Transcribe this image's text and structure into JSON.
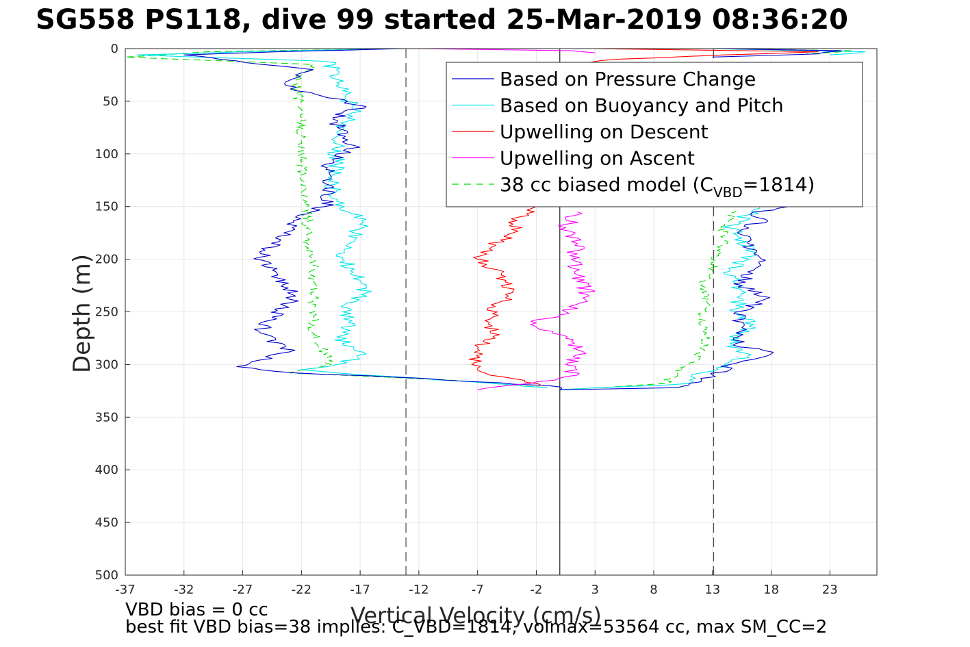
{
  "title": "SG558 PS118, dive 99 started 25-Mar-2019 08:36:20",
  "notes": {
    "line1": "VBD bias = 0 cc",
    "line2": "best fit VBD bias=38 implies: C_VBD=1814, volmax=53564 cc, max SM_CC=2"
  },
  "colors": {
    "pressure": "#0000cc",
    "buoyancy": "#00e5ee",
    "descent": "#ff0000",
    "ascent": "#ff00ff",
    "model": "#00dd00",
    "grid": "#e6e6e6",
    "axis": "#262626"
  },
  "chart_data": {
    "type": "line",
    "title": "SG558 PS118, dive 99 started 25-Mar-2019 08:36:20",
    "xlabel": "Vertical Velocity (cm/s)",
    "ylabel": "Depth (m)",
    "xlim": [
      -37,
      27
    ],
    "ylim": [
      500,
      0
    ],
    "y_reversed": true,
    "grid": true,
    "legend_position": "top-right",
    "x_ticks": [
      -37,
      -32,
      -27,
      -22,
      -17,
      -12,
      -7,
      -2,
      3,
      8,
      13,
      18,
      23
    ],
    "y_ticks": [
      0,
      50,
      100,
      150,
      200,
      250,
      300,
      350,
      400,
      450,
      500
    ],
    "vertical_lines": [
      {
        "x": -13.1,
        "style": "dashed"
      },
      {
        "x": 0,
        "style": "solid"
      },
      {
        "x": 13.1,
        "style": "dashed"
      }
    ],
    "series": [
      {
        "name": "Based on Pressure Change",
        "color_key": "pressure",
        "style": "solid",
        "depth": [
          0,
          3,
          6,
          10,
          20,
          30,
          40,
          55,
          58,
          70,
          85,
          92,
          110,
          130,
          150,
          160,
          175,
          198,
          215,
          235,
          255,
          270,
          288,
          302,
          308,
          312,
          316,
          320,
          324
        ],
        "x": [
          -13.5,
          -24,
          -32,
          -29,
          -21,
          -23,
          -22.5,
          -16.5,
          -18,
          -19,
          -18.5,
          -17.5,
          -20,
          -19.5,
          -20,
          -22.5,
          -23.5,
          -25.5,
          -24,
          -22.5,
          -24.5,
          -25.5,
          -23,
          -27.5,
          -22.5,
          -14,
          -8,
          -1,
          0
        ]
      },
      {
        "name": "Based on Buoyancy and Pitch",
        "color_key": "buoyancy",
        "style": "solid",
        "depth": [
          0,
          3,
          6,
          12,
          20,
          40,
          58,
          80,
          110,
          140,
          155,
          162,
          175,
          200,
          220,
          232,
          250,
          260,
          280,
          290,
          300,
          305,
          310,
          316,
          322
        ],
        "x": [
          -13,
          -27,
          -36,
          -20,
          -19,
          -18.5,
          -17.5,
          -19,
          -19,
          -19.5,
          -18,
          -16.5,
          -17.5,
          -18.5,
          -17,
          -16.5,
          -18.5,
          -18,
          -18.5,
          -16.5,
          -19,
          -22,
          -16.5,
          -8,
          -1
        ]
      },
      {
        "name": "Upwelling on Descent",
        "color_key": "descent",
        "style": "solid",
        "depth": [
          150,
          160,
          175,
          190,
          200,
          215,
          230,
          245,
          260,
          275,
          285,
          300,
          310,
          315,
          320
        ],
        "x": [
          -2,
          -3.5,
          -4,
          -6,
          -7,
          -5,
          -4,
          -5.5,
          -6,
          -5.5,
          -7,
          -7.5,
          -6,
          -3,
          -1.5
        ]
      },
      {
        "name": "Upwelling on Ascent",
        "color_key": "ascent",
        "style": "solid",
        "depth": [
          155,
          170,
          185,
          200,
          215,
          235,
          250,
          262,
          275,
          288,
          300,
          310,
          318,
          324
        ],
        "x": [
          1.5,
          0.5,
          1.5,
          1,
          1.5,
          2.5,
          0.5,
          -2.5,
          0.5,
          2,
          0.5,
          1.5,
          -2.5,
          -7
        ]
      },
      {
        "name": "38 cc biased model (C",
        "name_sub": "VBD",
        "name_suffix": "=1814)",
        "color_key": "model",
        "style": "dashed",
        "depth": [
          0,
          3,
          8,
          15,
          30,
          60,
          90,
          120,
          150,
          180,
          210,
          240,
          270,
          300,
          308,
          315,
          322
        ],
        "x": [
          -13,
          -30,
          -37,
          -21,
          -22.5,
          -22,
          -22,
          -22,
          -21.5,
          -21.5,
          -21,
          -21,
          -21,
          -19.5,
          -23,
          -9,
          -1
        ]
      }
    ],
    "ascent_pairs": [
      {
        "color_key": "pressure",
        "style": "solid",
        "depth": [
          324,
          322,
          318,
          310,
          300,
          290,
          280,
          265,
          250,
          238,
          225,
          212,
          198,
          185,
          172,
          162,
          155,
          150
        ],
        "x": [
          0,
          10,
          11,
          13,
          14.5,
          18,
          15,
          15.5,
          15,
          17.5,
          15.5,
          16,
          17,
          16,
          15.5,
          17.5,
          16.5,
          19.5
        ]
      },
      {
        "color_key": "buoyancy",
        "style": "solid",
        "depth": [
          324,
          318,
          308,
          300,
          292,
          280,
          262,
          250,
          230,
          210,
          195,
          180,
          168,
          158,
          150
        ],
        "x": [
          0,
          11,
          12,
          14,
          16,
          14.5,
          16.5,
          15,
          15.5,
          14.5,
          16.5,
          15.5,
          14.5,
          16,
          17
        ]
      },
      {
        "color_key": "model",
        "style": "dashed",
        "depth": [
          324,
          318,
          308,
          300,
          288,
          270,
          255,
          240,
          225,
          210,
          195,
          180,
          168,
          155
        ],
        "x": [
          0,
          9,
          10,
          11,
          12,
          12.5,
          12,
          12.5,
          12,
          13,
          13.5,
          14,
          14,
          15
        ]
      },
      {
        "color_key": "pressure",
        "style": "solid",
        "depth": [
          0,
          2,
          5,
          8
        ],
        "x": [
          13,
          24,
          22,
          13
        ]
      },
      {
        "color_key": "buoyancy",
        "style": "solid",
        "depth": [
          0,
          3,
          6
        ],
        "x": [
          13,
          26,
          23
        ]
      },
      {
        "color_key": "model",
        "style": "dashed",
        "depth": [
          0,
          2,
          5
        ],
        "x": [
          13,
          25,
          21
        ]
      },
      {
        "color_key": "descent",
        "style": "solid",
        "depth": [
          0,
          3,
          6,
          10,
          14
        ],
        "x": [
          3,
          22,
          14,
          5,
          2
        ]
      },
      {
        "color_key": "ascent",
        "style": "solid",
        "depth": [
          0,
          2,
          4
        ],
        "x": [
          -12,
          1,
          3
        ]
      }
    ]
  }
}
